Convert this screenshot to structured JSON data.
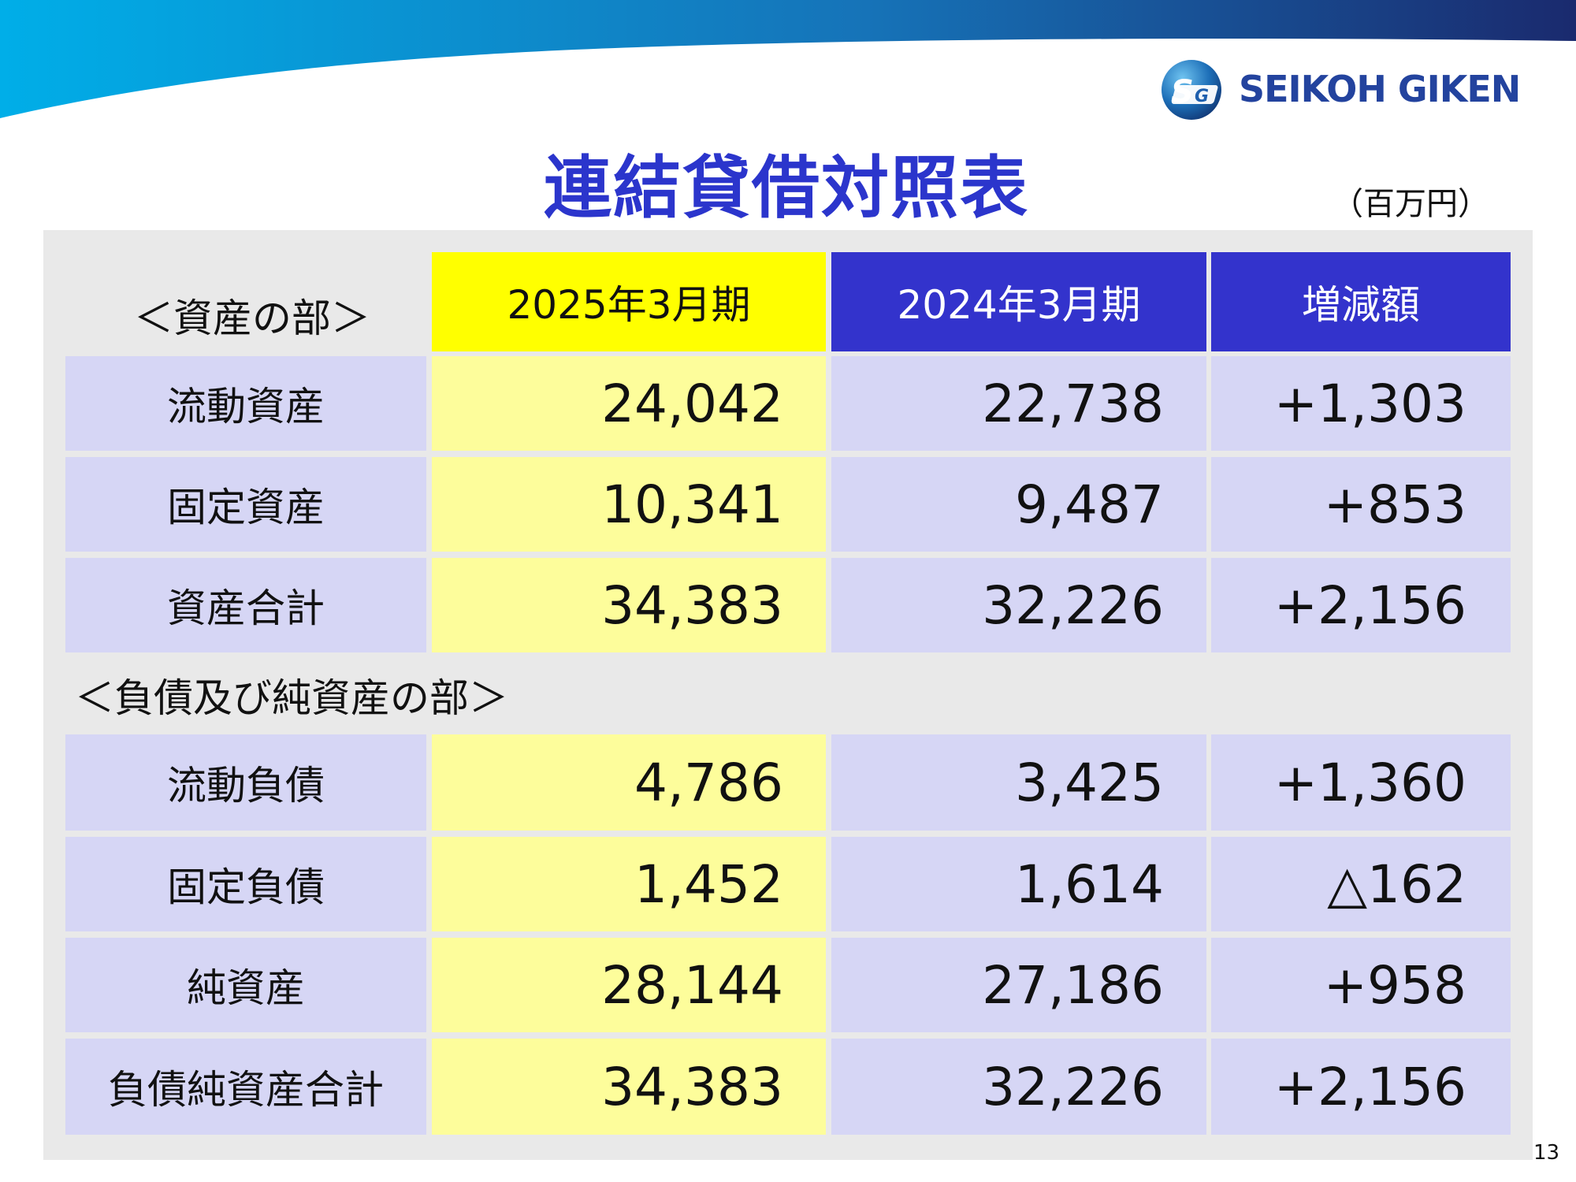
{
  "header": {
    "brand_text": "SEIKOH GIKEN",
    "logo_letters": "SG",
    "brand_color": "#23439e",
    "band_colors": [
      "#00aee8",
      "#1a2a6e"
    ]
  },
  "title": "連結貸借対照表",
  "unit_note": "（百万円）",
  "columns": {
    "current": "2025年3月期",
    "previous": "2024年3月期",
    "change": "増減額"
  },
  "sections": {
    "assets": {
      "label": "＜資産の部＞",
      "rows": [
        {
          "label": "流動資産",
          "current": "24,042",
          "previous": "22,738",
          "change": "+1,303"
        },
        {
          "label": "固定資産",
          "current": "10,341",
          "previous": "9,487",
          "change": "+853"
        },
        {
          "label": "資産合計",
          "current": "34,383",
          "previous": "32,226",
          "change": "+2,156"
        }
      ]
    },
    "liabilities": {
      "label": "＜負債及び純資産の部＞",
      "rows": [
        {
          "label": "流動負債",
          "current": "4,786",
          "previous": "3,425",
          "change": "+1,360"
        },
        {
          "label": "固定負債",
          "current": "1,452",
          "previous": "1,614",
          "change": "△162"
        },
        {
          "label": "純資産",
          "current": "28,144",
          "previous": "27,186",
          "change": "+958"
        },
        {
          "label": "負債純資産合計",
          "current": "34,383",
          "previous": "32,226",
          "change": "+2,156"
        }
      ]
    }
  },
  "colors": {
    "title": "#2b35cc",
    "header_current": "#ffff00",
    "header_other": "#3333cc",
    "cell_current": "#fdfd9b",
    "cell_other": "#d6d6f5",
    "panel": "#e9e9e9"
  },
  "page_number": "13"
}
